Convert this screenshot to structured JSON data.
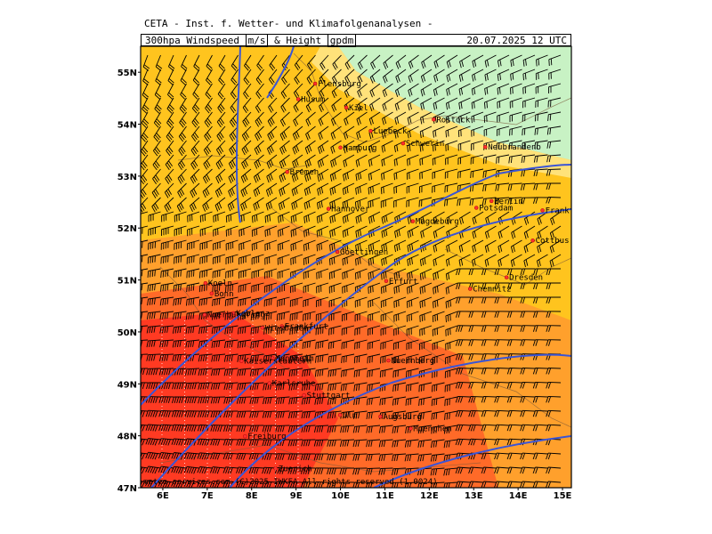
{
  "header": {
    "org": "CETA - Inst. f. Wetter- und Klimafolgenanalysen -",
    "title_prefix": "300hpa Windspeed",
    "unit_wind": "m/s",
    "title_mid": "& Height",
    "unit_height": "gpdm",
    "datetime": "20.07.2025 12 UTC"
  },
  "map": {
    "lat_labels": [
      "55N",
      "54N",
      "53N",
      "52N",
      "51N",
      "50N",
      "49N",
      "48N",
      "47N"
    ],
    "lon_labels": [
      "6E",
      "7E",
      "8E",
      "9E",
      "10E",
      "11E",
      "12E",
      "13E",
      "14E",
      "15E"
    ],
    "lat_range": [
      47,
      55.5
    ],
    "lon_range": [
      5.5,
      15.2
    ],
    "cities": [
      {
        "name": "Flensburg",
        "lon": 9.43,
        "lat": 54.78
      },
      {
        "name": "Husum",
        "lon": 9.05,
        "lat": 54.48
      },
      {
        "name": "Kiel",
        "lon": 10.13,
        "lat": 54.32
      },
      {
        "name": "Rostock",
        "lon": 12.1,
        "lat": 54.09
      },
      {
        "name": "Luebeck",
        "lon": 10.68,
        "lat": 53.87
      },
      {
        "name": "Schwerin",
        "lon": 11.41,
        "lat": 53.63
      },
      {
        "name": "Hamburg",
        "lon": 10.0,
        "lat": 53.55
      },
      {
        "name": "Neubrandenb",
        "lon": 13.26,
        "lat": 53.56
      },
      {
        "name": "Bremen",
        "lon": 8.8,
        "lat": 53.08
      },
      {
        "name": "Berlin",
        "lon": 13.4,
        "lat": 52.52
      },
      {
        "name": "Potsdam",
        "lon": 13.06,
        "lat": 52.39
      },
      {
        "name": "Frankfurt/O.",
        "lon": 14.55,
        "lat": 52.34
      },
      {
        "name": "Hannover",
        "lon": 9.73,
        "lat": 52.37
      },
      {
        "name": "Magdeburg",
        "lon": 11.63,
        "lat": 52.13
      },
      {
        "name": "Cottbus",
        "lon": 14.33,
        "lat": 51.76
      },
      {
        "name": "Goettingen",
        "lon": 9.93,
        "lat": 51.54
      },
      {
        "name": "Dresden",
        "lon": 13.74,
        "lat": 51.05
      },
      {
        "name": "Chemnitz",
        "lon": 12.92,
        "lat": 50.83
      },
      {
        "name": "Erfurt",
        "lon": 11.03,
        "lat": 50.98
      },
      {
        "name": "Koeln",
        "lon": 6.96,
        "lat": 50.94
      },
      {
        "name": "Bonn",
        "lon": 7.1,
        "lat": 50.74
      },
      {
        "name": "Koblenz",
        "lon": 7.59,
        "lat": 50.36
      },
      {
        "name": "Nuerburgring",
        "lon": 6.94,
        "lat": 50.33
      },
      {
        "name": "Frankfurt",
        "lon": 8.68,
        "lat": 50.11
      },
      {
        "name": "Wiesbaden",
        "lon": 8.24,
        "lat": 50.08
      },
      {
        "name": "Mannheim",
        "lon": 8.47,
        "lat": 49.49
      },
      {
        "name": "Kaiserslautern",
        "lon": 7.77,
        "lat": 49.44
      },
      {
        "name": "Nuernberg",
        "lon": 11.08,
        "lat": 49.45
      },
      {
        "name": "Karlsruhe",
        "lon": 8.4,
        "lat": 49.01
      },
      {
        "name": "Stuttgart",
        "lon": 9.18,
        "lat": 48.78
      },
      {
        "name": "Ulm",
        "lon": 9.99,
        "lat": 48.4
      },
      {
        "name": "Augsburg",
        "lon": 10.9,
        "lat": 48.37
      },
      {
        "name": "Muenchen",
        "lon": 11.58,
        "lat": 48.14
      },
      {
        "name": "Freiburg",
        "lon": 7.85,
        "lat": 47.99
      },
      {
        "name": "Zuerich",
        "lon": 8.54,
        "lat": 47.37
      }
    ]
  },
  "copyright": "meteo-services.com (C)2025 IWKFA All rights reserved (1.0024)",
  "colors": {
    "fill_yellow": "#ffd24a",
    "fill_green": "#c8f2c4",
    "fill_orange": "#ff9e2c",
    "fill_red": "#f42a2a",
    "contour": "#3a55d6",
    "barb": "#000000"
  }
}
